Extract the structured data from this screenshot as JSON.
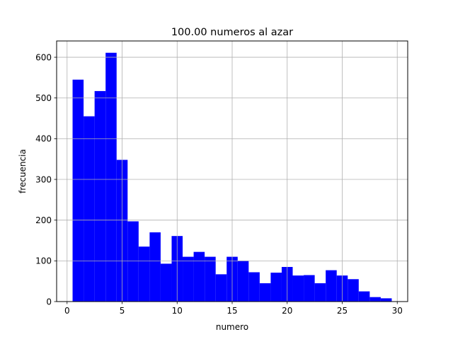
{
  "chart_data": {
    "type": "bar",
    "title": "100.00 numeros al azar",
    "xlabel": "numero",
    "ylabel": "frecuencia",
    "xlim": [
      -0.95,
      30.95
    ],
    "ylim": [
      0,
      640
    ],
    "grid": true,
    "color": "#0000ff",
    "x_ticks": [
      0,
      5,
      10,
      15,
      20,
      25,
      30
    ],
    "y_ticks": [
      0,
      100,
      200,
      300,
      400,
      500,
      600
    ],
    "bin_edges": [
      0.5,
      1.5,
      2.5,
      3.5,
      4.5,
      5.5,
      6.5,
      7.5,
      8.5,
      9.5,
      10.5,
      11.5,
      12.5,
      13.5,
      14.5,
      15.5,
      16.5,
      17.5,
      18.5,
      19.5,
      20.5,
      21.5,
      22.5,
      23.5,
      24.5,
      25.5,
      26.5,
      27.5,
      28.5,
      29.5
    ],
    "values": [
      545,
      455,
      517,
      611,
      348,
      197,
      135,
      170,
      93,
      161,
      110,
      122,
      110,
      67,
      110,
      100,
      72,
      45,
      71,
      85,
      64,
      65,
      45,
      77,
      64,
      55,
      25,
      11,
      8
    ]
  }
}
